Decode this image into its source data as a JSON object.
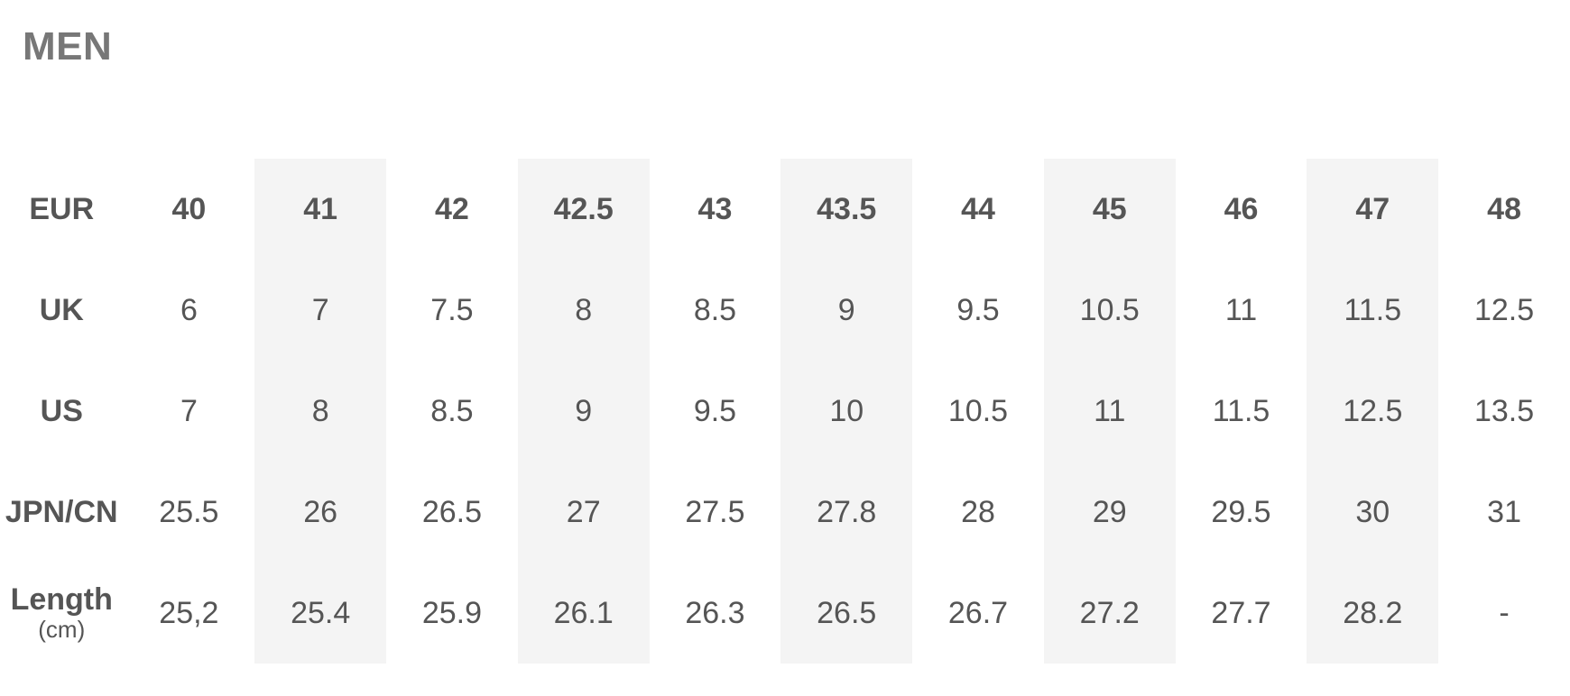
{
  "title": "MEN",
  "rows": [
    {
      "label": "EUR",
      "values": [
        "40",
        "41",
        "42",
        "42.5",
        "43",
        "43.5",
        "44",
        "45",
        "46",
        "47",
        "48"
      ]
    },
    {
      "label": "UK",
      "values": [
        "6",
        "7",
        "7.5",
        "8",
        "8.5",
        "9",
        "9.5",
        "10.5",
        "11",
        "11.5",
        "12.5"
      ]
    },
    {
      "label": "US",
      "values": [
        "7",
        "8",
        "8.5",
        "9",
        "9.5",
        "10",
        "10.5",
        "11",
        "11.5",
        "12.5",
        "13.5"
      ]
    },
    {
      "label": "JPN/CN",
      "values": [
        "25.5",
        "26",
        "26.5",
        "27",
        "27.5",
        "27.8",
        "28",
        "29",
        "29.5",
        "30",
        "31"
      ]
    },
    {
      "label": "Length",
      "unit": "(cm)",
      "values": [
        "25,2",
        "25.4",
        "25.9",
        "26.1",
        "26.3",
        "26.5",
        "26.7",
        "27.2",
        "27.7",
        "28.2",
        "-"
      ]
    }
  ],
  "colors": {
    "stripe": "#f4f4f4",
    "text": "#555555",
    "title": "#777777"
  }
}
